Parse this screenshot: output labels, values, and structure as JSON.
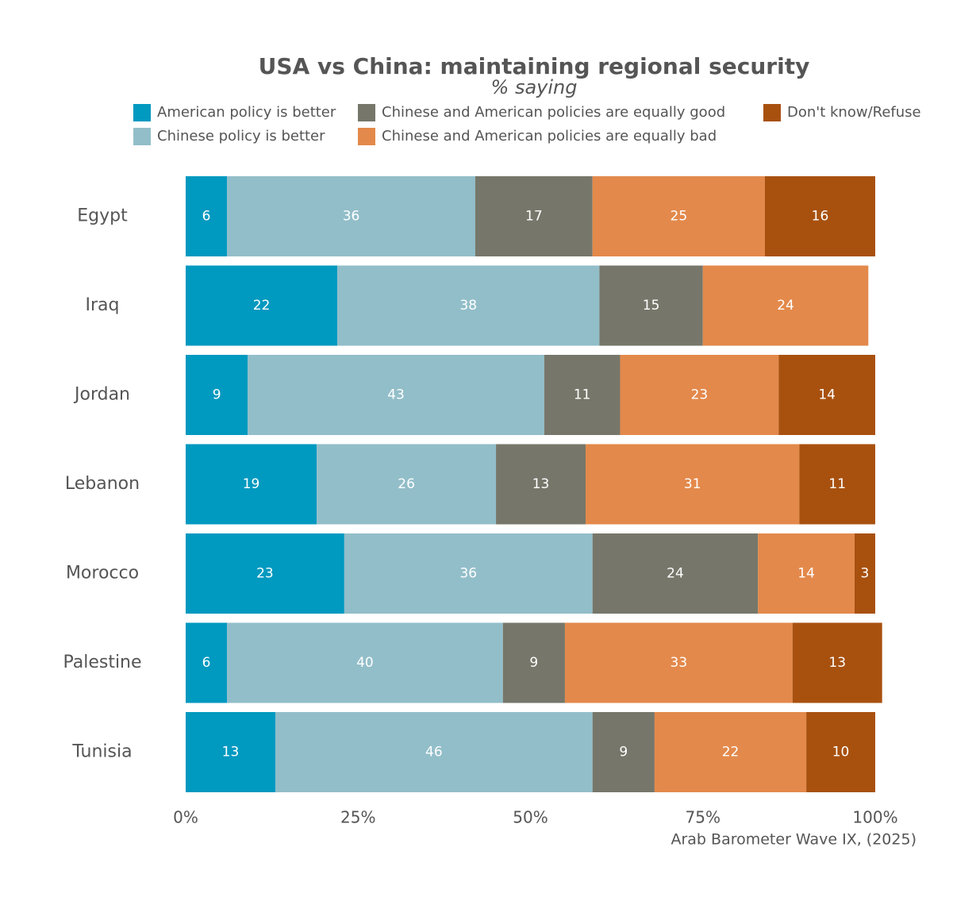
{
  "chart_data": {
    "type": "stacked-bar-horizontal",
    "title": "USA vs China: maintaining regional security",
    "subtitle": "% saying",
    "source": "Arab Barometer Wave IX, (2025)",
    "categories": [
      "Egypt",
      "Iraq",
      "Jordan",
      "Lebanon",
      "Morocco",
      "Palestine",
      "Tunisia"
    ],
    "series": [
      {
        "name": "American policy is better",
        "color": "#0099c0",
        "values": [
          6,
          22,
          9,
          19,
          23,
          6,
          13
        ]
      },
      {
        "name": "Chinese policy is better",
        "color": "#92bec9",
        "values": [
          36,
          38,
          43,
          26,
          36,
          40,
          46
        ]
      },
      {
        "name": "Chinese and American policies are equally good",
        "color": "#76776a",
        "values": [
          17,
          15,
          11,
          13,
          24,
          9,
          9
        ]
      },
      {
        "name": "Chinese and American policies are equally bad",
        "color": "#e3894b",
        "values": [
          25,
          24,
          23,
          31,
          14,
          33,
          22
        ]
      },
      {
        "name": "Don't know/Refuse",
        "color": "#a8510f",
        "values": [
          16,
          null,
          14,
          11,
          3,
          13,
          10
        ]
      }
    ],
    "xlim": [
      0,
      100
    ],
    "xticks": [
      {
        "value": 0,
        "label": "0%"
      },
      {
        "value": 25,
        "label": "25%"
      },
      {
        "value": 50,
        "label": "50%"
      },
      {
        "value": 75,
        "label": "75%"
      },
      {
        "value": 100,
        "label": "100%"
      }
    ],
    "legend": "top"
  }
}
